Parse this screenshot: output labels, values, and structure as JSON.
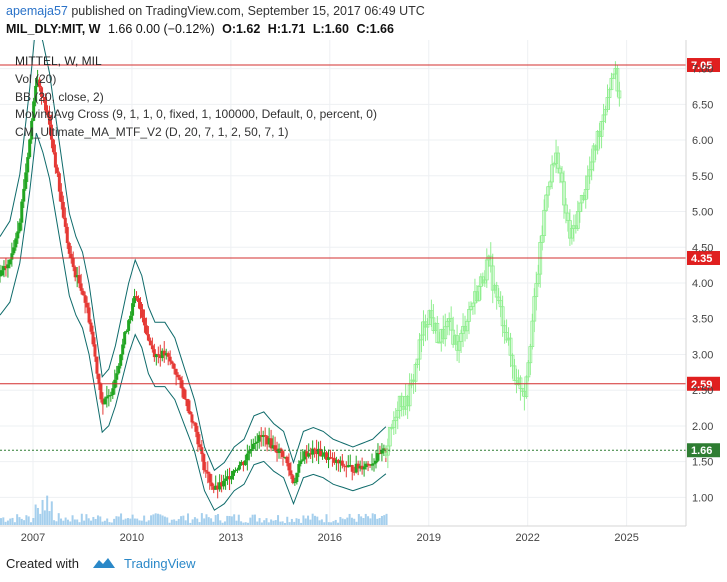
{
  "header": {
    "user": "apemaja57",
    "published_text": "published on TradingView.com, September 15, 2017 06:49 UTC",
    "symbol": "MIL_DLY:MIT, W",
    "quote": "1.66 0.00 (−0.12%)",
    "ohlc": {
      "o": "O:1.62",
      "h": "H:1.71",
      "l": "L:1.60",
      "c": "C:1.66"
    }
  },
  "legend": {
    "title": "MITTEL, W, MIL",
    "lines": [
      "Vol (20)",
      "BB (20, close, 2)",
      "MovingAvg Cross (9, 1, 1, 0, fixed, 1, 100000, Default, 0, percent, 0)",
      "CM_Ultimate_MA_MTF_V2 (D, 20, 7, 1, 2, 50, 7, 1)"
    ]
  },
  "footer": {
    "created_with": "Created with",
    "brand": "TradingView"
  },
  "colors": {
    "level_line": "#d32f2f",
    "level_label_bg": "#e01f1f",
    "current_price": "#2e7d32",
    "candle_up": "#22a522",
    "candle_down": "#e53935",
    "projection": "#90ee90",
    "bollinger": "#0f6b6b",
    "volume": "#8fc3e8",
    "axis_text": "#444444"
  },
  "chart_data": {
    "type": "line",
    "title": "MITTEL, W, MIL",
    "x_ticks": [
      "2007",
      "2010",
      "2013",
      "2016",
      "2019",
      "2022",
      "2025"
    ],
    "y_ticks": [
      "1.00",
      "1.50",
      "2.00",
      "2.50",
      "3.00",
      "3.50",
      "4.00",
      "4.50",
      "5.00",
      "5.50",
      "6.00",
      "6.50",
      "7.00"
    ],
    "ylim": [
      0.6,
      7.4
    ],
    "xlim": [
      2006.0,
      2026.8
    ],
    "levels": [
      {
        "label": "7.05",
        "value": 7.05
      },
      {
        "label": "4.35",
        "value": 4.35
      },
      {
        "label": "2.59",
        "value": 2.59
      }
    ],
    "current_price": {
      "label": "1.66",
      "value": 1.66
    },
    "series": [
      {
        "name": "MIL_DLY:MIT",
        "points": [
          [
            2006.0,
            4.1
          ],
          [
            2006.3,
            4.3
          ],
          [
            2006.6,
            4.9
          ],
          [
            2006.9,
            6.0
          ],
          [
            2007.1,
            6.9
          ],
          [
            2007.3,
            6.6
          ],
          [
            2007.5,
            6.2
          ],
          [
            2007.7,
            5.6
          ],
          [
            2007.9,
            5.0
          ],
          [
            2008.1,
            4.4
          ],
          [
            2008.3,
            4.1
          ],
          [
            2008.5,
            3.9
          ],
          [
            2008.7,
            3.5
          ],
          [
            2008.9,
            2.9
          ],
          [
            2009.1,
            2.3
          ],
          [
            2009.3,
            2.4
          ],
          [
            2009.5,
            2.7
          ],
          [
            2009.7,
            3.1
          ],
          [
            2009.9,
            3.5
          ],
          [
            2010.1,
            3.8
          ],
          [
            2010.3,
            3.6
          ],
          [
            2010.5,
            3.2
          ],
          [
            2010.7,
            3.0
          ],
          [
            2011.0,
            3.0
          ],
          [
            2011.3,
            2.8
          ],
          [
            2011.6,
            2.4
          ],
          [
            2011.9,
            2.0
          ],
          [
            2012.2,
            1.4
          ],
          [
            2012.5,
            1.1
          ],
          [
            2012.8,
            1.2
          ],
          [
            2013.1,
            1.4
          ],
          [
            2013.4,
            1.5
          ],
          [
            2013.7,
            1.8
          ],
          [
            2014.0,
            1.85
          ],
          [
            2014.3,
            1.7
          ],
          [
            2014.6,
            1.6
          ],
          [
            2014.9,
            1.2
          ],
          [
            2015.2,
            1.6
          ],
          [
            2015.5,
            1.65
          ],
          [
            2015.8,
            1.6
          ],
          [
            2016.1,
            1.5
          ],
          [
            2016.4,
            1.45
          ],
          [
            2016.7,
            1.4
          ],
          [
            2017.0,
            1.45
          ],
          [
            2017.3,
            1.5
          ],
          [
            2017.7,
            1.66
          ]
        ]
      },
      {
        "name": "projection",
        "points": [
          [
            2017.7,
            1.66
          ],
          [
            2017.9,
            2.0
          ],
          [
            2018.1,
            2.4
          ],
          [
            2018.3,
            2.3
          ],
          [
            2018.5,
            2.6
          ],
          [
            2018.8,
            3.3
          ],
          [
            2019.0,
            3.6
          ],
          [
            2019.3,
            3.2
          ],
          [
            2019.6,
            3.4
          ],
          [
            2019.9,
            3.1
          ],
          [
            2020.2,
            3.6
          ],
          [
            2020.5,
            3.9
          ],
          [
            2020.8,
            4.3
          ],
          [
            2021.0,
            3.9
          ],
          [
            2021.3,
            3.4
          ],
          [
            2021.6,
            2.7
          ],
          [
            2021.9,
            2.5
          ],
          [
            2022.1,
            3.3
          ],
          [
            2022.3,
            4.1
          ],
          [
            2022.6,
            5.4
          ],
          [
            2022.9,
            5.8
          ],
          [
            2023.1,
            5.1
          ],
          [
            2023.3,
            4.6
          ],
          [
            2023.6,
            5.1
          ],
          [
            2023.9,
            5.6
          ],
          [
            2024.1,
            6.0
          ],
          [
            2024.4,
            6.6
          ],
          [
            2024.6,
            7.0
          ],
          [
            2024.8,
            6.6
          ]
        ]
      }
    ]
  }
}
